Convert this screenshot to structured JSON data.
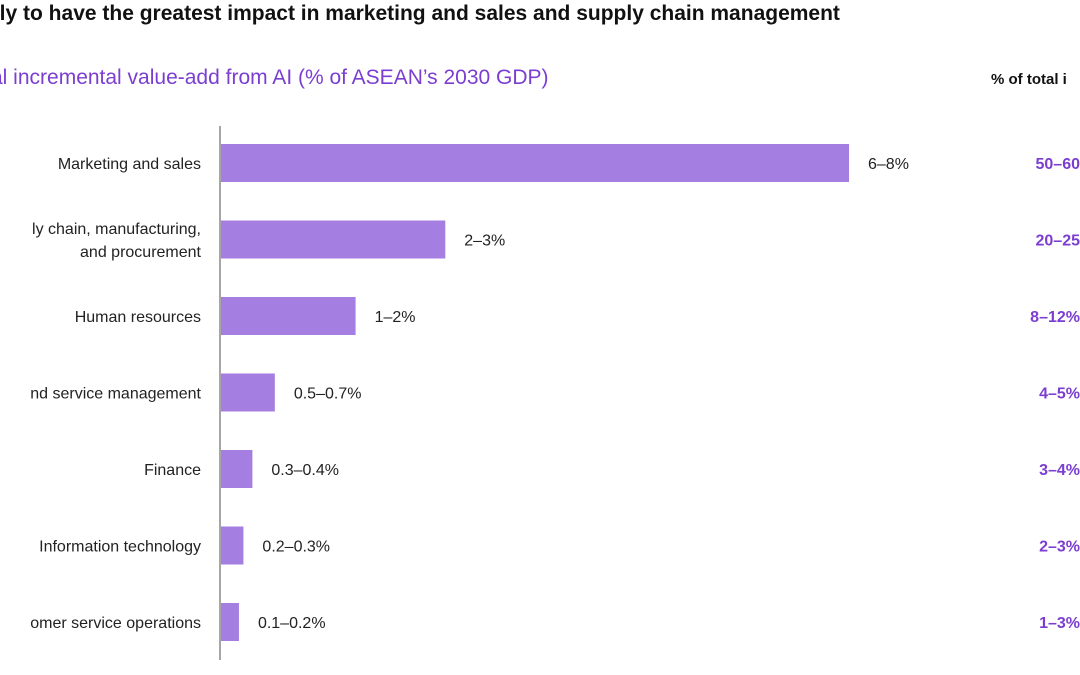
{
  "header": {
    "headline": "ely to have the greatest impact in marketing and sales and supply chain management",
    "subtitle": "al incremental value-add from AI (% of ASEAN’s 2030 GDP)",
    "share_column_header": "% of total i"
  },
  "colors": {
    "bar": "#a47ee0",
    "accent_text": "#7b3ed1",
    "axis": "#888888"
  },
  "chart_data": {
    "type": "bar",
    "orientation": "horizontal",
    "title": "al incremental value-add from AI (% of ASEAN’s 2030 GDP)",
    "categories": [
      [
        "Marketing and sales"
      ],
      [
        "ly chain, manufacturing,",
        "and procurement"
      ],
      [
        "Human resources"
      ],
      [
        "nd service management"
      ],
      [
        "Finance"
      ],
      [
        "Information technology"
      ],
      [
        "omer service operations"
      ]
    ],
    "values": [
      7,
      2.5,
      1.5,
      0.6,
      0.35,
      0.25,
      0.2
    ],
    "value_labels": [
      "6–8%",
      "2–3%",
      "1–2%",
      "0.5–0.7%",
      "0.3–0.4%",
      "0.2–0.3%",
      "0.1–0.2%"
    ],
    "share_header": "% of total i",
    "share_labels": [
      "50–60",
      "20–25",
      "8–12%",
      "4–5%",
      "3–4%",
      "2–3%",
      "1–3%"
    ],
    "grid": false,
    "legend": "none"
  }
}
